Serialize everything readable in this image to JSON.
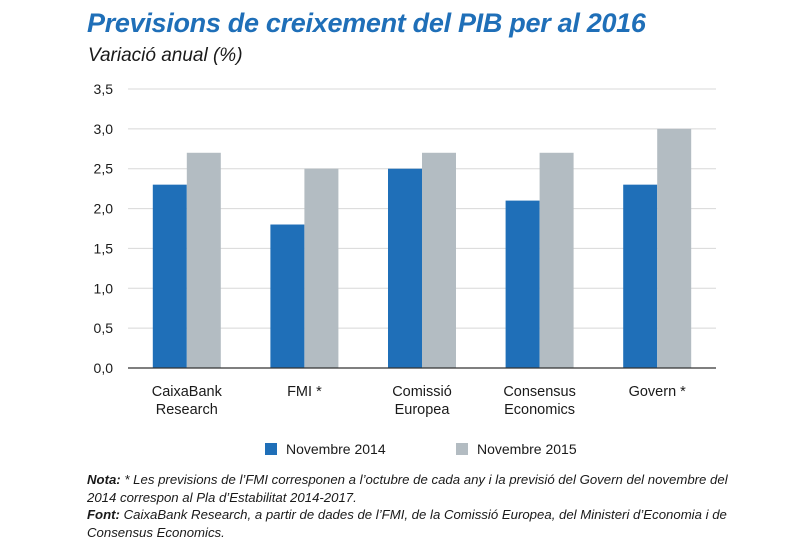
{
  "header": {
    "title": "Previsions de creixement del PIB per al 2016",
    "subtitle": "Variació anual (%)"
  },
  "colors": {
    "title": "#1f6fb8",
    "series_2014": "#1f6fb8",
    "series_2015": "#b3bcc2",
    "grid": "#d8d8d8"
  },
  "chart_data": {
    "type": "bar",
    "categories": [
      [
        "CaixaBank",
        "Research"
      ],
      [
        "FMI *"
      ],
      [
        "Comissió",
        "Europea"
      ],
      [
        "Consensus",
        "Economics"
      ],
      [
        "Govern *"
      ]
    ],
    "series": [
      {
        "name": "Novembre 2014",
        "values": [
          2.3,
          1.8,
          2.5,
          2.1,
          2.3
        ]
      },
      {
        "name": "Novembre 2015",
        "values": [
          2.7,
          2.5,
          2.7,
          2.7,
          3.0
        ]
      }
    ],
    "title": "Previsions de creixement del PIB per al 2016",
    "xlabel": "",
    "ylabel": "Variació anual (%)",
    "ylim": [
      0,
      3.5
    ],
    "yticks": [
      "0,0",
      "0,5",
      "1,0",
      "1,5",
      "2,0",
      "2,5",
      "3,0",
      "3,5"
    ],
    "grid": true,
    "legend": "bottom"
  },
  "notes": {
    "nota_label": "Nota:",
    "nota_text": " * Les previsions de l’FMI corresponen a l’octubre de cada any i la previsió del Govern del novembre del 2014 correspon al Pla d’Estabilitat 2014-2017.",
    "font_label": "Font:",
    "font_text": " CaixaBank Research, a partir de dades de l’FMI, de la Comissió Europea, del Ministeri d’Economia i de Consensus Economics."
  }
}
